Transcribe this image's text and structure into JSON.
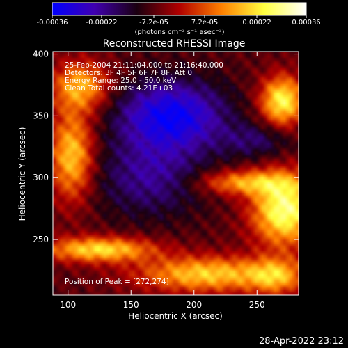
{
  "colorbar": {
    "tick_labels": [
      "-0.00036",
      "-0.00022",
      "-7.2e-05",
      "7.2e-05",
      "0.00022",
      "0.00036"
    ],
    "tick_values": [
      -0.00036,
      -0.00022,
      -7.2e-05,
      7.2e-05,
      0.00022,
      0.00036
    ],
    "range": [
      -0.00036,
      0.00036
    ],
    "units_label": "(photons cm⁻² s⁻¹ asec⁻²)",
    "colormap": [
      "#0000ff",
      "#4000b0",
      "#1a0010",
      "#b00000",
      "#ff8000",
      "#ffff40",
      "#ffffff"
    ]
  },
  "chart_data": {
    "type": "heatmap",
    "title": "Reconstructed RHESSI Image",
    "xlabel": "Heliocentric X (arcsec)",
    "ylabel": "Heliocentric Y (arcsec)",
    "xlim": [
      88,
      283
    ],
    "ylim": [
      205,
      402
    ],
    "xticks": [
      100,
      150,
      200,
      250
    ],
    "yticks": [
      250,
      300,
      350,
      400
    ],
    "value_range": [
      -0.00036,
      0.00036
    ],
    "annotations": [
      "25-Feb-2004 21:11:04.000 to 21:16:40.000",
      "Detectors: 3F 4F 5F 6F 7F 8F, Att 0",
      "Energy Range: 25.0 - 50.0 keV",
      "Clean    Total counts: 4.21E+03"
    ],
    "peak_label": "Position of Peak = [272,274]",
    "peak": [
      272,
      274
    ],
    "hot_regions": [
      {
        "x": 240,
        "y": 296,
        "sx": 26,
        "sy": 7,
        "amp": 0.6
      },
      {
        "x": 272,
        "y": 274,
        "sx": 18,
        "sy": 20,
        "amp": 1.0
      },
      {
        "x": 103,
        "y": 318,
        "sx": 12,
        "sy": 25,
        "amp": 0.75
      },
      {
        "x": 110,
        "y": 374,
        "sx": 16,
        "sy": 14,
        "amp": 0.65
      },
      {
        "x": 270,
        "y": 362,
        "sx": 12,
        "sy": 14,
        "amp": 0.9
      },
      {
        "x": 125,
        "y": 242,
        "sx": 30,
        "sy": 7,
        "amp": 0.8
      },
      {
        "x": 210,
        "y": 222,
        "sx": 38,
        "sy": 10,
        "amp": 0.75
      },
      {
        "x": 265,
        "y": 220,
        "sx": 15,
        "sy": 10,
        "amp": 0.55
      }
    ],
    "cold_regions": [
      {
        "x": 182,
        "y": 350,
        "sx": 30,
        "sy": 20,
        "amp": 0.75
      },
      {
        "x": 165,
        "y": 300,
        "sx": 30,
        "sy": 22,
        "amp": 0.4
      },
      {
        "x": 250,
        "y": 330,
        "sx": 20,
        "sy": 10,
        "amp": 0.3
      }
    ]
  },
  "footer": {
    "timestamp": "28-Apr-2022 23:12"
  }
}
